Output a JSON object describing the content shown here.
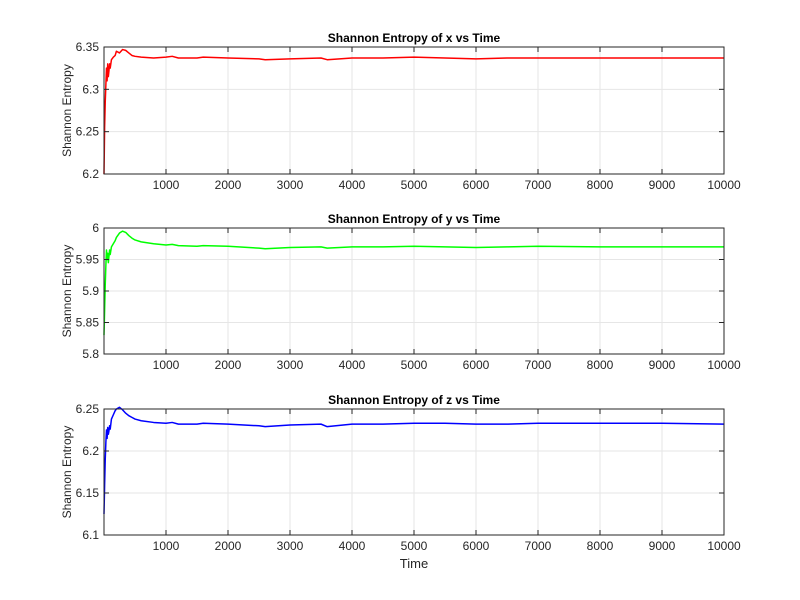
{
  "figure": {
    "background": "#ffffff",
    "grid_color": "#e6e6e6",
    "axis_color": "#262626"
  },
  "chart_data": [
    {
      "type": "line",
      "title": "Shannon Entropy of x vs Time",
      "xlabel": "",
      "ylabel": "Shannon Entropy",
      "xlim": [
        0,
        10000
      ],
      "ylim": [
        6.2,
        6.35
      ],
      "xticks": [
        1000,
        2000,
        3000,
        4000,
        5000,
        6000,
        7000,
        8000,
        9000,
        10000
      ],
      "yticks": [
        6.2,
        6.25,
        6.3,
        6.35
      ],
      "ytick_labels": [
        "6.2",
        "6.25",
        "6.3",
        "6.35"
      ],
      "grid": true,
      "series": [
        {
          "color": "#ff0000",
          "x": [
            0,
            10,
            20,
            30,
            40,
            50,
            60,
            70,
            80,
            90,
            100,
            120,
            150,
            180,
            200,
            250,
            300,
            350,
            400,
            450,
            500,
            600,
            800,
            1000,
            1100,
            1200,
            1500,
            1600,
            2000,
            2500,
            2600,
            3000,
            3500,
            3600,
            4000,
            4500,
            5000,
            5500,
            6000,
            6500,
            7000,
            8000,
            9000,
            10000
          ],
          "y": [
            6.2,
            6.255,
            6.285,
            6.305,
            6.325,
            6.31,
            6.33,
            6.315,
            6.322,
            6.33,
            6.325,
            6.335,
            6.338,
            6.34,
            6.345,
            6.343,
            6.347,
            6.346,
            6.343,
            6.34,
            6.339,
            6.338,
            6.337,
            6.338,
            6.339,
            6.337,
            6.337,
            6.338,
            6.337,
            6.336,
            6.335,
            6.336,
            6.337,
            6.335,
            6.337,
            6.337,
            6.338,
            6.337,
            6.336,
            6.337,
            6.337,
            6.337,
            6.337,
            6.337
          ]
        }
      ]
    },
    {
      "type": "line",
      "title": "Shannon Entropy of y vs Time",
      "xlabel": "",
      "ylabel": "Shannon Entropy",
      "xlim": [
        0,
        10000
      ],
      "ylim": [
        5.8,
        6.0
      ],
      "xticks": [
        1000,
        2000,
        3000,
        4000,
        5000,
        6000,
        7000,
        8000,
        9000,
        10000
      ],
      "yticks": [
        5.8,
        5.85,
        5.9,
        5.95,
        6.0
      ],
      "ytick_labels": [
        "5.8",
        "5.85",
        "5.9",
        "5.95",
        "6"
      ],
      "grid": true,
      "series": [
        {
          "color": "#00ff00",
          "x": [
            0,
            10,
            20,
            30,
            40,
            50,
            60,
            70,
            80,
            90,
            100,
            120,
            150,
            180,
            200,
            250,
            300,
            350,
            400,
            450,
            500,
            600,
            800,
            1000,
            1100,
            1200,
            1500,
            1600,
            2000,
            2500,
            2600,
            3000,
            3500,
            3600,
            4000,
            4500,
            5000,
            5500,
            6000,
            6500,
            7000,
            8000,
            9000,
            10000
          ],
          "y": [
            5.83,
            5.87,
            5.91,
            5.94,
            5.965,
            5.95,
            5.96,
            5.945,
            5.955,
            5.965,
            5.958,
            5.97,
            5.975,
            5.98,
            5.985,
            5.992,
            5.995,
            5.993,
            5.988,
            5.984,
            5.981,
            5.978,
            5.975,
            5.973,
            5.974,
            5.972,
            5.971,
            5.972,
            5.971,
            5.968,
            5.967,
            5.969,
            5.97,
            5.968,
            5.97,
            5.97,
            5.971,
            5.97,
            5.969,
            5.97,
            5.971,
            5.97,
            5.97,
            5.97
          ]
        }
      ]
    },
    {
      "type": "line",
      "title": "Shannon Entropy of z vs Time",
      "xlabel": "Time",
      "ylabel": "Shannon Entropy",
      "xlim": [
        0,
        10000
      ],
      "ylim": [
        6.1,
        6.25
      ],
      "xticks": [
        1000,
        2000,
        3000,
        4000,
        5000,
        6000,
        7000,
        8000,
        9000,
        10000
      ],
      "yticks": [
        6.1,
        6.15,
        6.2,
        6.25
      ],
      "ytick_labels": [
        "6.1",
        "6.15",
        "6.2",
        "6.25"
      ],
      "grid": true,
      "series": [
        {
          "color": "#0000ff",
          "x": [
            0,
            10,
            20,
            30,
            40,
            50,
            60,
            70,
            80,
            90,
            100,
            120,
            150,
            180,
            200,
            250,
            300,
            350,
            400,
            450,
            500,
            600,
            800,
            1000,
            1100,
            1200,
            1500,
            1600,
            2000,
            2500,
            2600,
            3000,
            3500,
            3600,
            4000,
            4500,
            5000,
            5500,
            6000,
            6500,
            7000,
            8000,
            9000,
            10000
          ],
          "y": [
            6.125,
            6.16,
            6.19,
            6.21,
            6.225,
            6.215,
            6.228,
            6.22,
            6.224,
            6.23,
            6.226,
            6.238,
            6.243,
            6.248,
            6.25,
            6.252,
            6.249,
            6.245,
            6.242,
            6.24,
            6.238,
            6.236,
            6.234,
            6.233,
            6.234,
            6.232,
            6.232,
            6.233,
            6.232,
            6.23,
            6.229,
            6.231,
            6.232,
            6.229,
            6.232,
            6.232,
            6.233,
            6.233,
            6.232,
            6.232,
            6.233,
            6.233,
            6.233,
            6.232
          ]
        }
      ]
    }
  ]
}
